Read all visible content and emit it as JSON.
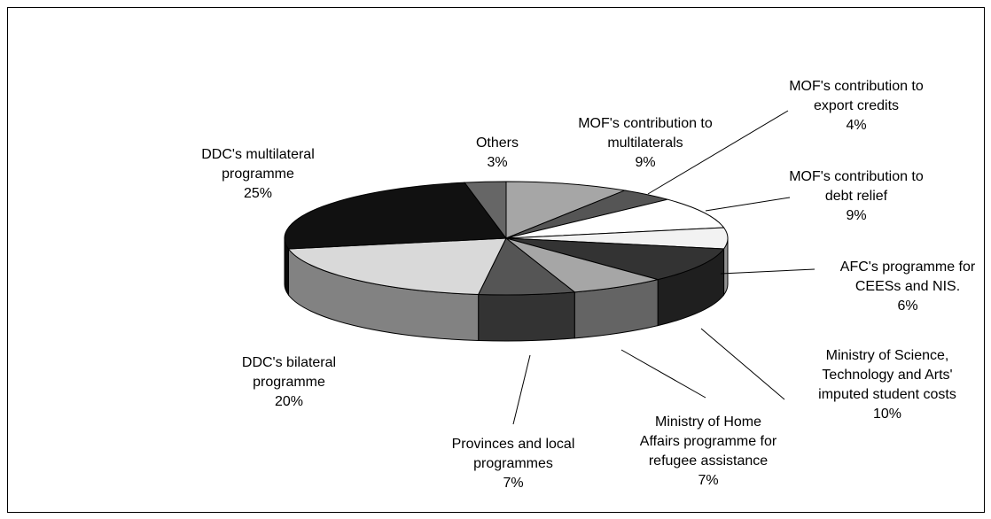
{
  "chart_data": {
    "type": "pie3d",
    "categories": [
      "MOF's contribution to\nmultilaterals",
      "MOF's contribution to\nexport credits",
      "MOF's contribution to\ndebt relief",
      "AFC's programme for\nCEESs and NIS.",
      "Ministry of Science,\nTechnology and Arts'\nimputed student costs",
      "Ministry of Home\nAffairs programme for\nrefugee assistance",
      "Provinces and local\nprogrammes",
      "DDC's bilateral\nprogramme",
      "DDC's multilateral\nprogramme",
      "Others"
    ],
    "values": [
      9,
      4,
      9,
      6,
      10,
      7,
      7,
      20,
      25,
      3
    ],
    "value_labels": [
      "9%",
      "4%",
      "9%",
      "6%",
      "10%",
      "7%",
      "7%",
      "20%",
      "25%",
      "3%"
    ],
    "colors": [
      "#a6a6a6",
      "#555555",
      "#ffffff",
      "#f2f2f2",
      "#333333",
      "#a6a6a6",
      "#555555",
      "#d9d9d9",
      "#111111",
      "#666666"
    ]
  }
}
